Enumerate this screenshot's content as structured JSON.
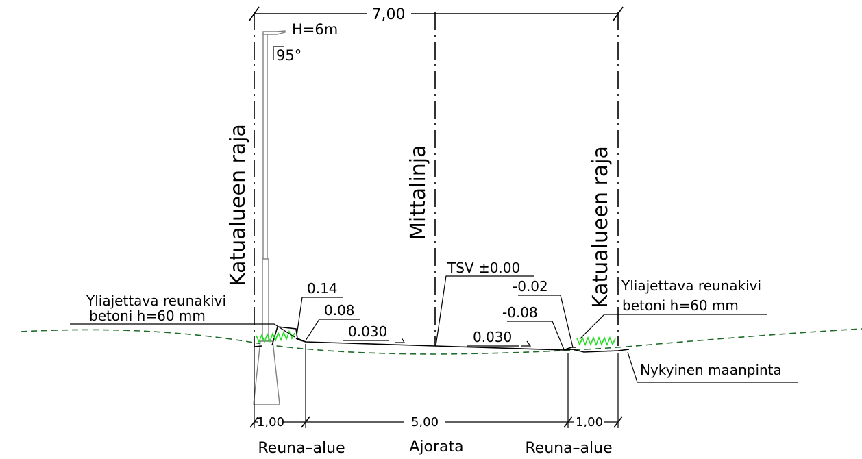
{
  "dimensions": {
    "total": "7,00",
    "left_verge": "1,00",
    "carriageway": "5,00",
    "right_verge": "1,00"
  },
  "section_labels": {
    "left_verge": "Reuna–alue",
    "carriageway": "Ajorata",
    "right_verge": "Reuna–alue"
  },
  "boundary_lines": {
    "left": "Katualueen raja",
    "center": "Mittalinja",
    "right": "Katualueen raja"
  },
  "lamp_post": {
    "height": "H=6m",
    "angle": "95°"
  },
  "curb_left": {
    "line1": "Yliajettava reunakivi",
    "line2": "betoni h=60 mm"
  },
  "curb_right": {
    "line1": "Yliajettava reunakivi",
    "line2": "betoni h=60 mm"
  },
  "levels": {
    "center": "TSV ±0.00",
    "left_curb_top": "0.14",
    "left_curb_bottom": "0.08",
    "right_curb_top": "-0.02",
    "right_curb_bottom": "-0.08"
  },
  "slopes": {
    "left": "0.030",
    "right": "0.030"
  },
  "ground": {
    "label": "Nykyinen maanpinta"
  },
  "colors": {
    "line": "#000000",
    "grass": "#22dd22",
    "ground": "#1f6b2a",
    "pole": "#808080"
  }
}
